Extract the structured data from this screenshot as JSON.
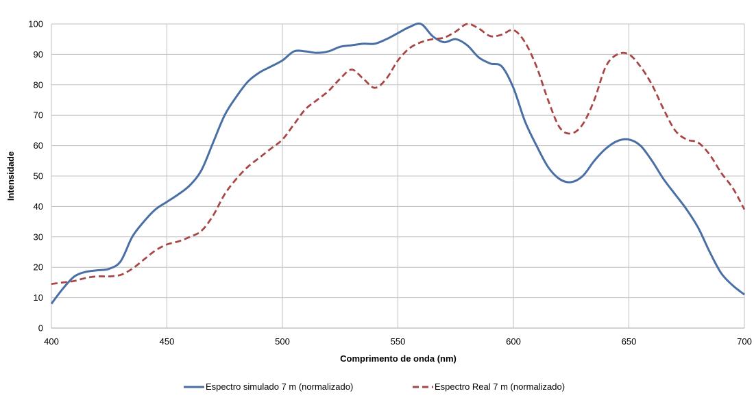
{
  "chart_data": {
    "type": "line",
    "title": "",
    "xlabel": "Comprimento de onda (nm)",
    "ylabel": "Intensidade",
    "xlim": [
      400,
      700
    ],
    "ylim": [
      0,
      100
    ],
    "xticks": [
      400,
      450,
      500,
      550,
      600,
      650,
      700
    ],
    "yticks": [
      0,
      10,
      20,
      30,
      40,
      50,
      60,
      70,
      80,
      90,
      100
    ],
    "grid": true,
    "legend_position": "bottom",
    "series": [
      {
        "name": "Espectro simulado 7 m (normalizado)",
        "color": "#4a6fa5",
        "style": "solid",
        "x": [
          400,
          405,
          410,
          415,
          420,
          425,
          430,
          435,
          440,
          445,
          450,
          455,
          460,
          465,
          470,
          475,
          480,
          485,
          490,
          495,
          500,
          505,
          510,
          515,
          520,
          525,
          530,
          535,
          540,
          545,
          550,
          555,
          560,
          565,
          570,
          575,
          580,
          585,
          590,
          595,
          600,
          605,
          610,
          615,
          620,
          625,
          630,
          635,
          640,
          645,
          650,
          655,
          660,
          665,
          670,
          675,
          680,
          685,
          690,
          695,
          700
        ],
        "y": [
          8,
          13,
          17,
          18.5,
          19,
          19.5,
          22,
          30,
          35,
          39,
          41.5,
          44,
          47,
          52,
          61,
          70,
          76,
          81,
          84,
          86,
          88,
          91,
          91,
          90.5,
          91,
          92.5,
          93,
          93.5,
          93.5,
          95,
          97,
          99,
          100,
          96,
          94,
          95,
          93,
          89,
          87,
          86,
          79,
          68,
          60,
          53,
          49,
          48,
          50,
          55,
          59,
          61.5,
          62,
          60,
          55,
          49,
          44,
          39,
          33,
          25,
          18,
          14,
          11
        ]
      },
      {
        "name": "Espectro Real 7 m (normalizado)",
        "color": "#a84645",
        "style": "dashed",
        "x": [
          400,
          405,
          410,
          415,
          420,
          425,
          430,
          435,
          440,
          445,
          450,
          455,
          460,
          465,
          470,
          475,
          480,
          485,
          490,
          495,
          500,
          505,
          510,
          515,
          520,
          525,
          530,
          535,
          540,
          545,
          550,
          555,
          560,
          565,
          570,
          575,
          580,
          585,
          590,
          595,
          600,
          605,
          610,
          615,
          620,
          625,
          630,
          635,
          640,
          645,
          650,
          655,
          660,
          665,
          670,
          675,
          680,
          685,
          690,
          695,
          700
        ],
        "y": [
          14.5,
          15,
          15.5,
          16.5,
          17,
          17,
          17.5,
          19.5,
          22.5,
          25.5,
          27.5,
          28.5,
          30,
          32,
          37,
          44,
          49,
          53,
          56,
          59,
          62,
          67,
          72,
          75,
          78,
          82,
          85,
          82,
          79,
          82,
          88,
          92,
          94,
          95,
          95.5,
          97.5,
          100,
          98.5,
          96,
          96.5,
          98,
          94,
          86,
          75,
          66,
          64,
          67,
          75,
          86,
          90,
          90,
          86,
          80,
          72,
          65,
          62,
          61,
          57,
          51,
          46,
          39
        ]
      }
    ]
  }
}
